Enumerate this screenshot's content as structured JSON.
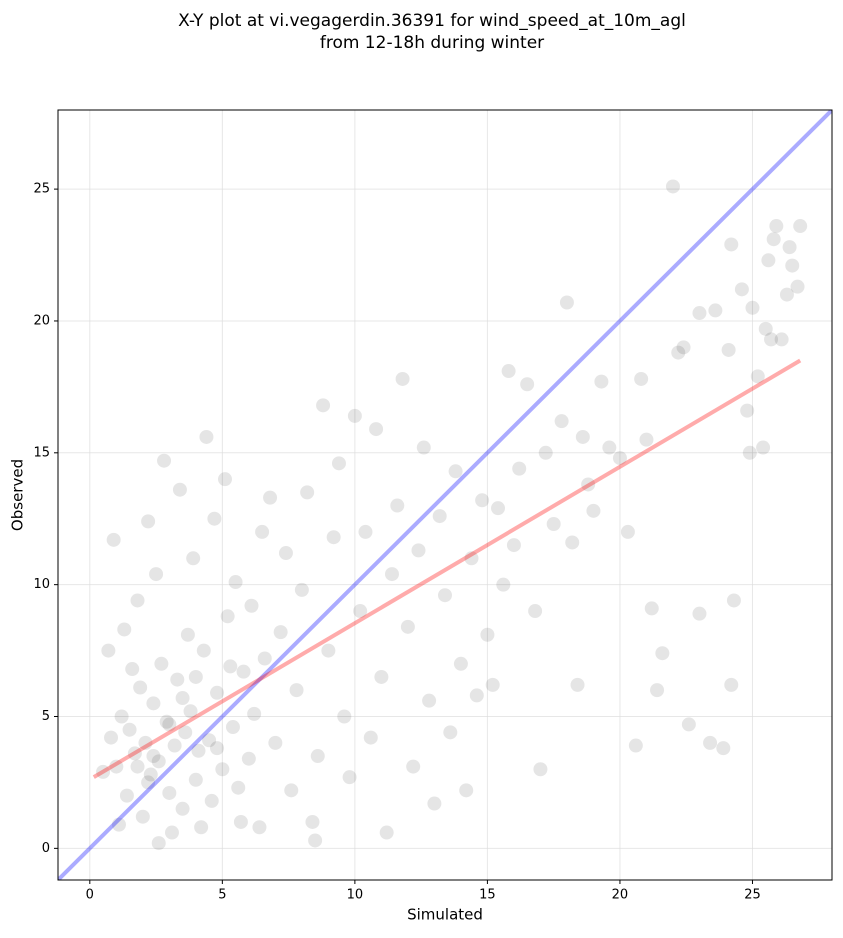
{
  "chart_data": {
    "type": "scatter",
    "title_lines": [
      "X-Y plot at vi.vegagerdin.36391 for wind_speed_at_10m_agl",
      "from 12-18h during winter"
    ],
    "x_label": "Simulated",
    "y_label": "Observed",
    "xlim": [
      -1.2,
      28
    ],
    "ylim": [
      -1.2,
      28
    ],
    "xticks": [
      0,
      5,
      10,
      15,
      20,
      25
    ],
    "yticks": [
      0,
      5,
      10,
      15,
      20,
      25
    ],
    "grid": true,
    "point_color": "#000000",
    "x": [
      0.5,
      0.8,
      1.0,
      1.2,
      1.4,
      1.5,
      1.7,
      1.9,
      2.0,
      2.1,
      2.3,
      2.4,
      2.6,
      2.7,
      2.9,
      3.0,
      3.2,
      3.3,
      3.5,
      3.6,
      3.8,
      4.0,
      4.1,
      4.3,
      4.5,
      4.6,
      4.8,
      5.0,
      5.2,
      5.4,
      5.6,
      5.8,
      6.0,
      6.2,
      0.7,
      0.9,
      1.3,
      1.8,
      2.2,
      2.5,
      2.8,
      3.4,
      3.9,
      4.4,
      4.7,
      5.1,
      5.5,
      6.1,
      6.5,
      6.8,
      7.0,
      7.2,
      7.4,
      7.6,
      7.8,
      8.0,
      8.2,
      8.4,
      8.6,
      8.8,
      9.0,
      9.2,
      9.4,
      9.6,
      9.8,
      10.0,
      10.2,
      10.4,
      10.6,
      10.8,
      11.0,
      11.2,
      11.4,
      11.6,
      11.8,
      12.0,
      12.2,
      12.4,
      12.6,
      12.8,
      13.0,
      13.2,
      13.4,
      13.6,
      13.8,
      14.0,
      14.2,
      14.4,
      14.6,
      14.8,
      15.0,
      15.2,
      15.4,
      15.6,
      15.8,
      16.0,
      16.2,
      16.5,
      16.8,
      17.0,
      17.2,
      17.5,
      17.8,
      18.0,
      18.2,
      18.4,
      18.6,
      18.8,
      19.0,
      19.3,
      19.6,
      20.0,
      20.3,
      20.6,
      20.8,
      21.0,
      21.2,
      21.4,
      21.6,
      22.0,
      22.2,
      22.4,
      22.6,
      23.0,
      23.0,
      23.4,
      23.6,
      23.9,
      24.1,
      24.2,
      24.3,
      24.2,
      24.6,
      24.8,
      24.9,
      25.0,
      25.2,
      25.4,
      25.5,
      25.6,
      25.7,
      25.8,
      25.9,
      26.1,
      26.3,
      26.4,
      26.5,
      26.7,
      26.8,
      1.1,
      2.6,
      3.1,
      4.2,
      5.7,
      6.4,
      8.5,
      1.6,
      3.7,
      5.3,
      6.6,
      2.4,
      3.0,
      1.8,
      4.8,
      3.5,
      2.2,
      4.0
    ],
    "y": [
      2.9,
      4.2,
      3.1,
      5.0,
      2.0,
      4.5,
      3.6,
      6.1,
      1.2,
      4.0,
      2.8,
      5.5,
      3.3,
      7.0,
      4.8,
      2.1,
      3.9,
      6.4,
      1.5,
      4.4,
      5.2,
      2.6,
      3.7,
      7.5,
      4.1,
      1.8,
      5.9,
      3.0,
      8.8,
      4.6,
      2.3,
      6.7,
      3.4,
      5.1,
      7.5,
      11.7,
      8.3,
      9.4,
      12.4,
      10.4,
      14.7,
      13.6,
      11.0,
      15.6,
      12.5,
      14.0,
      10.1,
      9.2,
      12.0,
      13.3,
      4.0,
      8.2,
      11.2,
      2.2,
      6.0,
      9.8,
      13.5,
      1.0,
      3.5,
      16.8,
      7.5,
      11.8,
      14.6,
      5.0,
      2.7,
      16.4,
      9.0,
      12.0,
      4.2,
      15.9,
      6.5,
      0.6,
      10.4,
      13.0,
      17.8,
      8.4,
      3.1,
      11.3,
      15.2,
      5.6,
      1.7,
      12.6,
      9.6,
      4.4,
      14.3,
      7.0,
      2.2,
      11.0,
      5.8,
      13.2,
      8.1,
      6.2,
      12.9,
      10.0,
      18.1,
      11.5,
      14.4,
      17.6,
      9.0,
      3.0,
      15.0,
      12.3,
      16.2,
      20.7,
      11.6,
      6.2,
      15.6,
      13.8,
      12.8,
      17.7,
      15.2,
      14.8,
      12.0,
      3.9,
      17.8,
      15.5,
      9.1,
      6.0,
      7.4,
      25.1,
      18.8,
      19.0,
      4.7,
      8.9,
      20.3,
      4.0,
      20.4,
      3.8,
      18.9,
      22.9,
      9.4,
      6.2,
      21.2,
      16.6,
      15.0,
      20.5,
      17.9,
      15.2,
      19.7,
      22.3,
      19.3,
      23.1,
      23.6,
      19.3,
      21.0,
      22.8,
      22.1,
      21.3,
      23.6,
      0.9,
      0.2,
      0.6,
      0.8,
      1.0,
      0.8,
      0.3,
      6.8,
      8.1,
      6.9,
      7.2,
      3.5,
      4.7,
      3.1,
      3.8,
      5.7,
      2.5,
      6.5
    ],
    "lines": [
      {
        "color": "#0000ff",
        "x": [
          -1.2,
          28
        ],
        "y": [
          -1.2,
          28
        ]
      },
      {
        "color": "#ff0000",
        "x": [
          0.15,
          26.8
        ],
        "y": [
          2.7,
          18.5
        ]
      }
    ]
  }
}
